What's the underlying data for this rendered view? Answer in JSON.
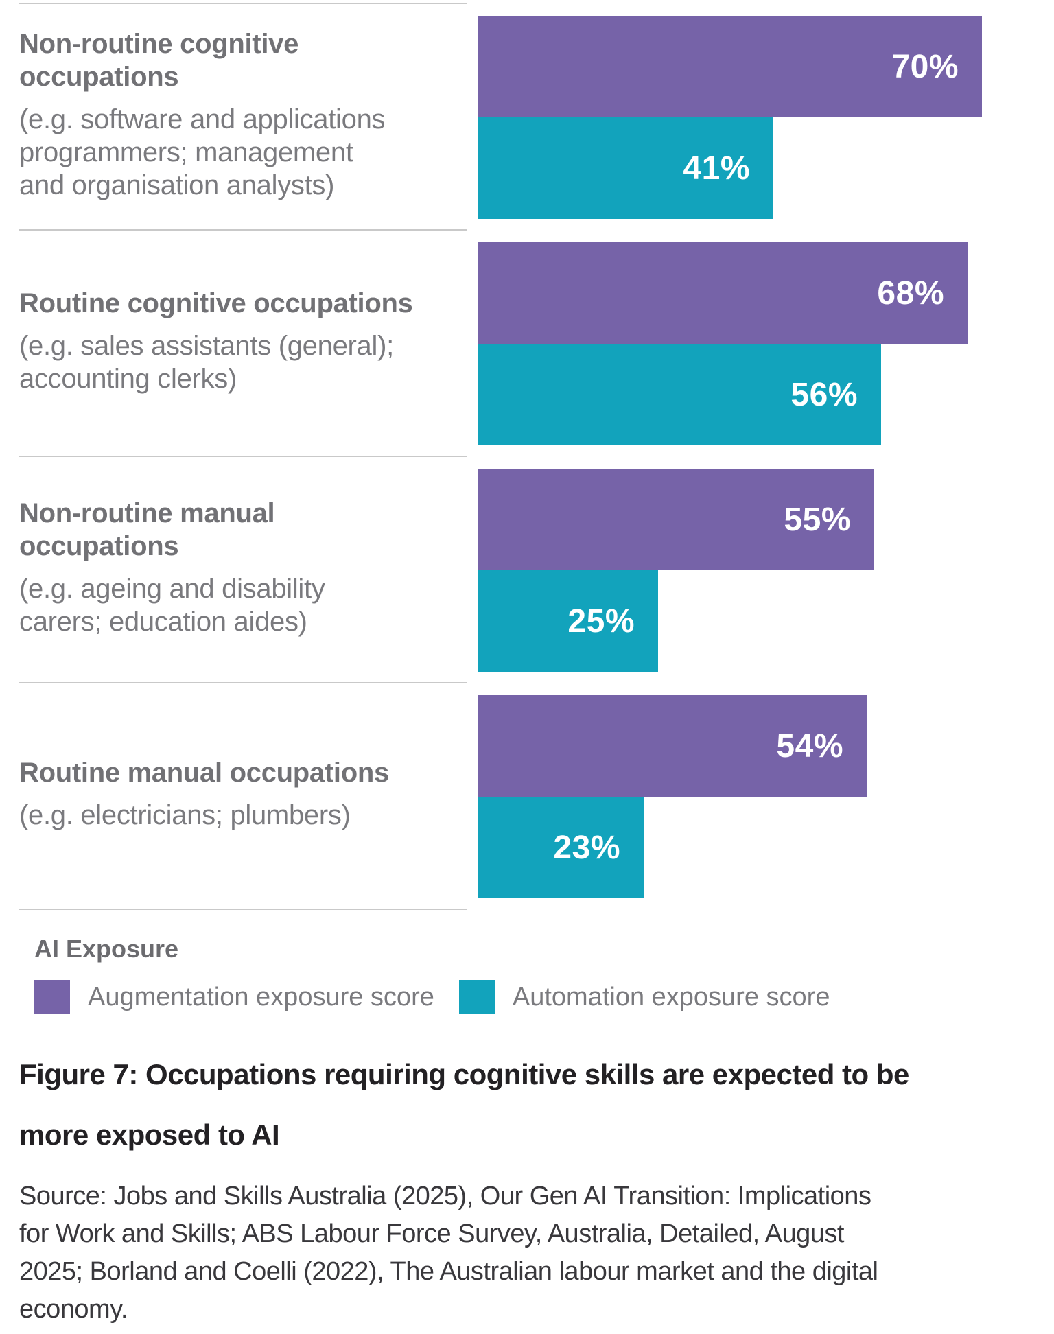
{
  "chart_data": {
    "type": "bar",
    "orientation": "horizontal",
    "legend_title": "AI Exposure",
    "value_suffix": "%",
    "xlim": [
      0,
      100
    ],
    "grid": false,
    "legend_position": "bottom",
    "categories": [
      {
        "title": "Non-routine cognitive occupations",
        "title_lines": [
          "Non-routine cognitive",
          "occupations"
        ],
        "subtitle": "(e.g. software and applications programmers; management and organisation analysts)",
        "subtitle_lines": [
          "(e.g. software and applications",
          "programmers; management",
          "and organisation analysts)"
        ]
      },
      {
        "title": "Routine cognitive occupations",
        "title_lines": [
          "Routine cognitive occupations"
        ],
        "subtitle": "(e.g. sales assistants (general); accounting clerks)",
        "subtitle_lines": [
          "(e.g. sales assistants (general);",
          "accounting clerks)"
        ]
      },
      {
        "title": "Non-routine manual occupations",
        "title_lines": [
          "Non-routine manual",
          "occupations"
        ],
        "subtitle": "(e.g. ageing and disability carers; education aides)",
        "subtitle_lines": [
          "(e.g. ageing and disability",
          "carers; education aides)"
        ]
      },
      {
        "title": "Routine manual occupations",
        "title_lines": [
          "Routine manual occupations"
        ],
        "subtitle": "(e.g. electricians; plumbers)",
        "subtitle_lines": [
          "(e.g. electricians; plumbers)"
        ]
      }
    ],
    "series": [
      {
        "name": "Augmentation exposure score",
        "color": "#7663A8",
        "values": [
          70,
          68,
          55,
          54
        ],
        "labels": [
          "70%",
          "68%",
          "55%",
          "54%"
        ]
      },
      {
        "name": "Automation exposure score",
        "color": "#12A3BC",
        "values": [
          41,
          56,
          25,
          23
        ],
        "labels": [
          "41%",
          "56%",
          "25%",
          "23%"
        ]
      }
    ]
  },
  "colors": {
    "augmentation": "#7663A8",
    "automation": "#12A3BC",
    "divider": "#c9c9c9",
    "label_text": "#717175",
    "caption_text": "#232124"
  },
  "legend": {
    "title": "AI Exposure",
    "items": [
      {
        "label": "Augmentation exposure score",
        "color": "#7663A8"
      },
      {
        "label": "Automation exposure score",
        "color": "#12A3BC"
      }
    ]
  },
  "caption": {
    "text": "Figure 7: Occupations requiring cognitive skills are expected to be more exposed to AI",
    "lines": [
      "Figure 7: Occupations requiring cognitive skills are expected to be",
      "more exposed to AI"
    ]
  },
  "source": {
    "text": "Source: Jobs and Skills Australia (2025), Our Gen AI Transition: Implications for Work and Skills; ABS Labour Force Survey, Australia, Detailed, August 2025; Borland and Coelli (2022), The Australian labour market and the digital economy.",
    "lines": [
      "Source: Jobs and Skills Australia (2025), Our Gen AI Transition: Implications",
      "for Work and Skills; ABS Labour Force Survey, Australia, Detailed, August",
      "2025; Borland and Coelli (2022), The Australian labour market and the digital",
      "economy."
    ]
  }
}
